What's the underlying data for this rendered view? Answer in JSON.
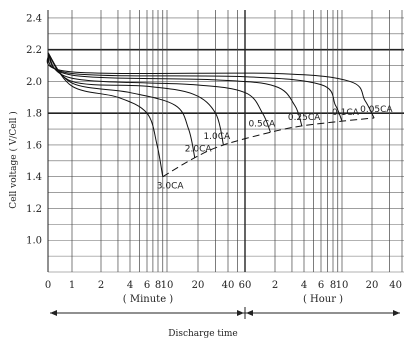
{
  "chart_data": {
    "type": "line",
    "title": "",
    "xlabel": "Discharge time",
    "ylabel": "Cell voltage ( V/Cell )",
    "x_unit_labels": [
      "( Minute )",
      "( Hour )"
    ],
    "ylim": [
      0.8,
      2.45
    ],
    "y_ticks": [
      "2.4",
      "2.2",
      "2.0",
      "1.8",
      "1.6",
      "1.4",
      "1.2",
      "1.0"
    ],
    "x_ticks": [
      "0",
      "1",
      "2",
      "4",
      "6",
      "8",
      "10",
      "20",
      "40",
      "60",
      "2",
      "4",
      "6",
      "8",
      "10",
      "20",
      "40"
    ],
    "x_ticks_hours": [
      0,
      0.0167,
      0.0333,
      0.0667,
      0.1,
      0.1333,
      0.1667,
      0.3333,
      0.6667,
      1,
      2,
      4,
      6,
      8,
      10,
      20,
      40
    ],
    "grid": true,
    "series": [
      {
        "name": "3.0CA",
        "points": [
          [
            0,
            2.18
          ],
          [
            0.0167,
            1.97
          ],
          [
            0.05,
            1.9
          ],
          [
            0.1,
            1.8
          ],
          [
            0.13,
            1.6
          ],
          [
            0.15,
            1.4
          ]
        ]
      },
      {
        "name": "2.0CA",
        "points": [
          [
            0,
            2.18
          ],
          [
            0.0167,
            1.99
          ],
          [
            0.0667,
            1.93
          ],
          [
            0.2,
            1.85
          ],
          [
            0.27,
            1.7
          ],
          [
            0.31,
            1.52
          ]
        ]
      },
      {
        "name": "1.0CA",
        "points": [
          [
            0,
            2.18
          ],
          [
            0.0167,
            2.0
          ],
          [
            0.1,
            1.97
          ],
          [
            0.3,
            1.92
          ],
          [
            0.5,
            1.8
          ],
          [
            0.6,
            1.6
          ]
        ]
      },
      {
        "name": "0.5CA",
        "points": [
          [
            0,
            2.18
          ],
          [
            0.0167,
            2.02
          ],
          [
            0.3,
            1.98
          ],
          [
            1,
            1.93
          ],
          [
            1.5,
            1.8
          ],
          [
            1.8,
            1.68
          ]
        ]
      },
      {
        "name": "0.25CA",
        "points": [
          [
            0,
            2.18
          ],
          [
            0.0167,
            2.04
          ],
          [
            0.5,
            2.01
          ],
          [
            2,
            1.97
          ],
          [
            3.2,
            1.85
          ],
          [
            3.8,
            1.72
          ]
        ]
      },
      {
        "name": "0.1CA",
        "points": [
          [
            0,
            2.18
          ],
          [
            0.0167,
            2.05
          ],
          [
            1,
            2.03
          ],
          [
            6,
            1.98
          ],
          [
            8.5,
            1.85
          ],
          [
            10,
            1.75
          ]
        ]
      },
      {
        "name": "0.05CA",
        "points": [
          [
            0,
            2.18
          ],
          [
            0.0167,
            2.06
          ],
          [
            2,
            2.05
          ],
          [
            12,
            2.0
          ],
          [
            17,
            1.88
          ],
          [
            21,
            1.77
          ]
        ]
      }
    ],
    "endpoint_series": {
      "name": "",
      "points": [
        [
          0.15,
          1.4
        ],
        [
          0.31,
          1.52
        ],
        [
          0.6,
          1.6
        ],
        [
          1.8,
          1.68
        ],
        [
          3.8,
          1.72
        ],
        [
          10,
          1.75
        ],
        [
          21,
          1.77
        ]
      ]
    },
    "reference_lines_y": [
      2.2,
      1.8
    ],
    "legend": "none"
  }
}
